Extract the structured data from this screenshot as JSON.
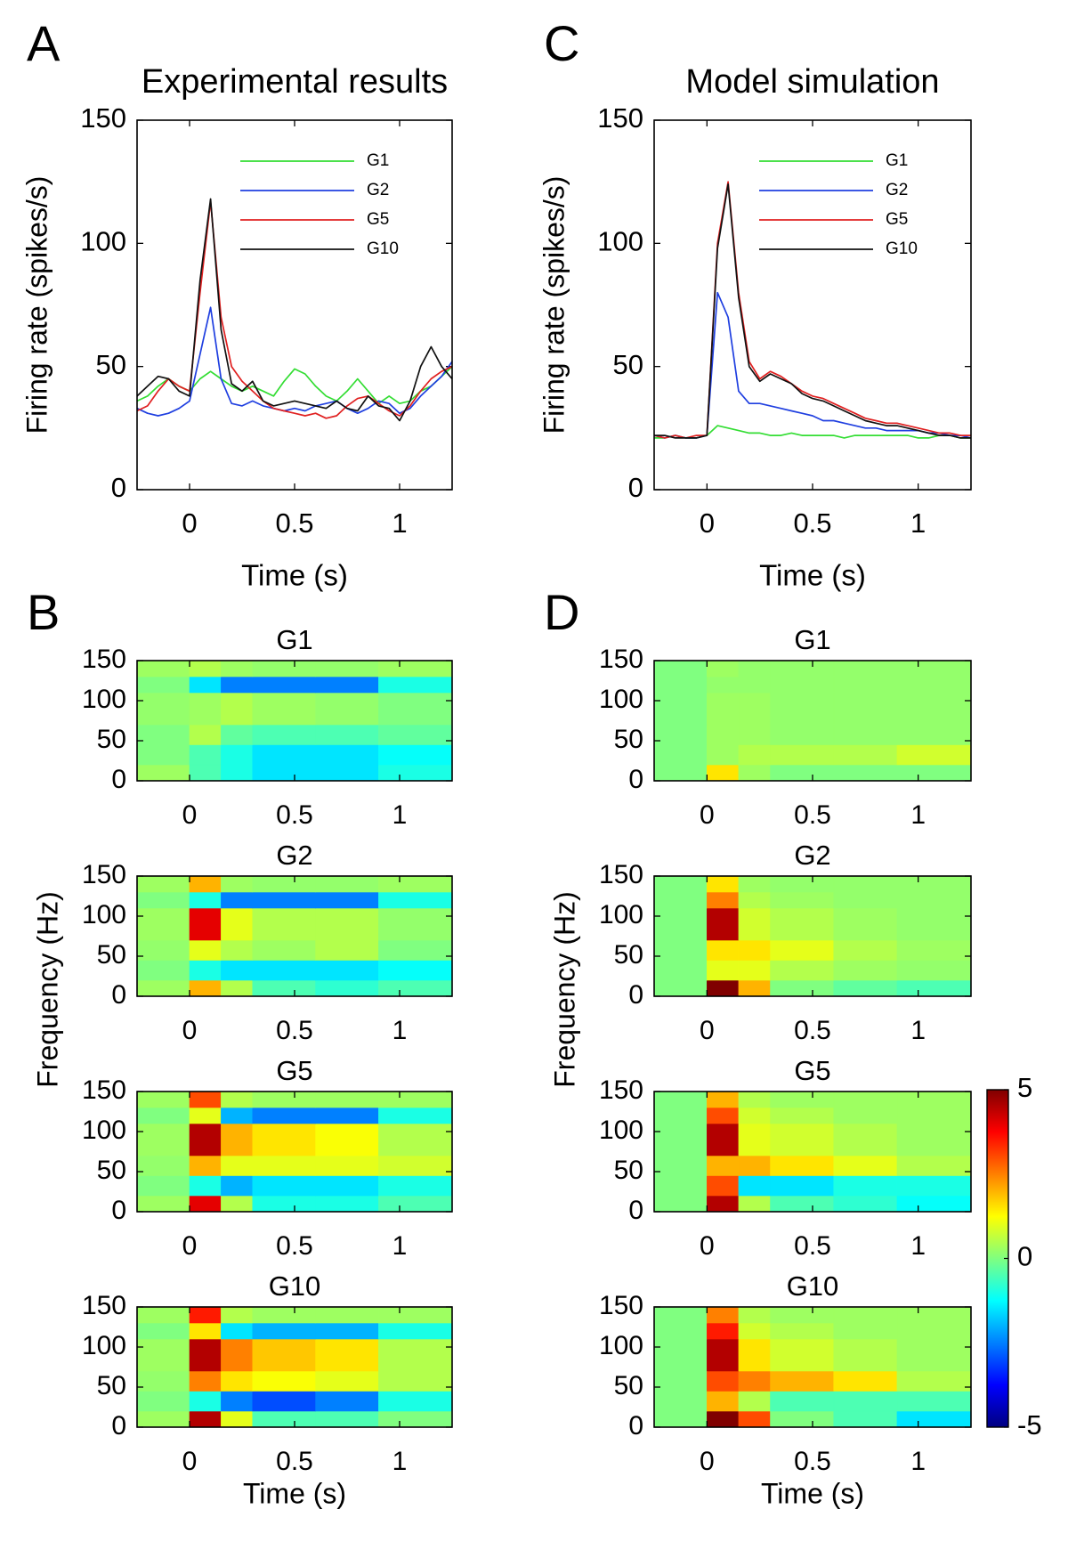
{
  "chart_data": [
    {
      "type": "line",
      "panel": "A",
      "title": "Experimental results",
      "xlabel": "Time (s)",
      "ylabel": "Firing rate (spikes/s)",
      "x": [
        -0.25,
        -0.2,
        -0.15,
        -0.1,
        -0.05,
        0,
        0.05,
        0.1,
        0.15,
        0.2,
        0.25,
        0.3,
        0.35,
        0.4,
        0.45,
        0.5,
        0.55,
        0.6,
        0.65,
        0.7,
        0.75,
        0.8,
        0.85,
        0.9,
        0.95,
        1,
        1.05,
        1.1,
        1.15,
        1.2,
        1.25
      ],
      "xlim": [
        -0.25,
        1.25
      ],
      "xticks": [
        0,
        0.5,
        1
      ],
      "ylim": [
        0,
        150
      ],
      "yticks": [
        0,
        50,
        100,
        150
      ],
      "legend": "upper right",
      "series": [
        {
          "name": "G1",
          "color": "#33dd33",
          "values": [
            36,
            38,
            42,
            45,
            42,
            40,
            45,
            48,
            45,
            42,
            40,
            42,
            40,
            38,
            44,
            49,
            47,
            42,
            38,
            36,
            40,
            45,
            40,
            35,
            38,
            35,
            36,
            40,
            42,
            46,
            50
          ]
        },
        {
          "name": "G2",
          "color": "#1f3fe0",
          "values": [
            33,
            31,
            30,
            31,
            33,
            36,
            55,
            74,
            45,
            35,
            34,
            36,
            34,
            33,
            32,
            33,
            32,
            34,
            35,
            36,
            33,
            31,
            33,
            36,
            35,
            31,
            33,
            38,
            42,
            46,
            52
          ]
        },
        {
          "name": "G5",
          "color": "#e02020",
          "values": [
            32,
            34,
            40,
            45,
            42,
            40,
            80,
            117,
            70,
            50,
            44,
            40,
            36,
            33,
            32,
            31,
            30,
            31,
            29,
            30,
            34,
            37,
            38,
            35,
            32,
            30,
            34,
            40,
            45,
            48,
            50
          ]
        },
        {
          "name": "G10",
          "color": "#111111",
          "values": [
            38,
            42,
            46,
            45,
            40,
            38,
            85,
            118,
            65,
            43,
            40,
            44,
            36,
            34,
            35,
            36,
            35,
            34,
            33,
            36,
            33,
            32,
            38,
            34,
            33,
            28,
            36,
            50,
            58,
            50,
            45
          ]
        }
      ]
    },
    {
      "type": "heatmap",
      "panel": "B",
      "xlabel": "Time (s)",
      "ylabel": "Frequency (Hz)",
      "xlim": [
        -0.25,
        1.25
      ],
      "xticks": [
        0,
        0.5,
        1
      ],
      "ylim": [
        0,
        150
      ],
      "yticks": [
        0,
        50,
        100,
        150
      ],
      "clim": [
        -5,
        5
      ],
      "x_edges": [
        -0.25,
        0,
        0.15,
        0.3,
        0.6,
        0.9,
        1.25
      ],
      "y_edges": [
        0,
        20,
        45,
        70,
        110,
        130,
        150
      ],
      "maps": [
        {
          "title": "G1",
          "values": [
            [
              0.3,
              -0.5,
              -1,
              -1.5,
              -1.5,
              -1
            ],
            [
              0,
              -0.5,
              -1,
              -1.5,
              -1.5,
              -1.2
            ],
            [
              0,
              0.5,
              -0.3,
              -0.5,
              -0.5,
              -0.3
            ],
            [
              0.2,
              0.3,
              0.5,
              0.3,
              0.2,
              0
            ],
            [
              0,
              -1.5,
              -2.5,
              -2.5,
              -2.5,
              -1
            ],
            [
              0.3,
              0.5,
              0.3,
              0.2,
              0.2,
              0.3
            ]
          ]
        },
        {
          "title": "G2",
          "values": [
            [
              0.3,
              2,
              0.5,
              -0.5,
              -0.8,
              -0.5
            ],
            [
              0,
              -1,
              -1.5,
              -1.5,
              -1.5,
              -1.2
            ],
            [
              0.2,
              1,
              0.5,
              0.3,
              0.5,
              0
            ],
            [
              0.3,
              4,
              1,
              0.5,
              0.5,
              0.2
            ],
            [
              0,
              -1,
              -2.5,
              -2.5,
              -2.5,
              -1
            ],
            [
              0.3,
              2,
              0.3,
              0.2,
              0.2,
              0.3
            ]
          ]
        },
        {
          "title": "G5",
          "values": [
            [
              0.3,
              4,
              0.5,
              -1,
              -1,
              -0.5
            ],
            [
              0,
              -1,
              -2,
              -1.5,
              -1.5,
              -1
            ],
            [
              0.2,
              2,
              1,
              1,
              1,
              0.8
            ],
            [
              0.3,
              4.5,
              2,
              1.5,
              1.2,
              0.5
            ],
            [
              0,
              1,
              -2,
              -2.5,
              -2.5,
              -1
            ],
            [
              0.3,
              3,
              0.5,
              0.3,
              0.3,
              0.3
            ]
          ]
        },
        {
          "title": "G10",
          "values": [
            [
              0.3,
              4.5,
              1,
              -0.5,
              -0.5,
              0
            ],
            [
              0,
              -1,
              -2.5,
              -3,
              -2.5,
              -1
            ],
            [
              0.2,
              2.5,
              1.5,
              1.2,
              1,
              0.5
            ],
            [
              0.3,
              4.5,
              2.5,
              1.8,
              1.5,
              0.5
            ],
            [
              0,
              1.5,
              -1.5,
              -2,
              -2,
              -1
            ],
            [
              0.3,
              3.5,
              0.5,
              0.3,
              0.3,
              0.3
            ]
          ]
        }
      ]
    },
    {
      "type": "line",
      "panel": "C",
      "title": "Model simulation",
      "xlabel": "Time (s)",
      "ylabel": "Firing rate (spikes/s)",
      "x": [
        -0.25,
        -0.2,
        -0.15,
        -0.1,
        -0.05,
        0,
        0.05,
        0.1,
        0.15,
        0.2,
        0.25,
        0.3,
        0.35,
        0.4,
        0.45,
        0.5,
        0.55,
        0.6,
        0.65,
        0.7,
        0.75,
        0.8,
        0.85,
        0.9,
        0.95,
        1,
        1.05,
        1.1,
        1.15,
        1.2,
        1.25
      ],
      "xlim": [
        -0.25,
        1.25
      ],
      "xticks": [
        0,
        0.5,
        1
      ],
      "ylim": [
        0,
        150
      ],
      "yticks": [
        0,
        50,
        100,
        150
      ],
      "legend": "upper right",
      "series": [
        {
          "name": "G1",
          "color": "#33dd33",
          "values": [
            21,
            21,
            22,
            21,
            21,
            22,
            26,
            25,
            24,
            23,
            23,
            22,
            22,
            23,
            22,
            22,
            22,
            22,
            21,
            22,
            22,
            22,
            22,
            22,
            22,
            21,
            21,
            22,
            22,
            21,
            21
          ]
        },
        {
          "name": "G2",
          "color": "#1f3fe0",
          "values": [
            22,
            21,
            22,
            21,
            21,
            22,
            80,
            70,
            40,
            35,
            35,
            34,
            33,
            32,
            31,
            30,
            28,
            28,
            27,
            26,
            25,
            25,
            24,
            24,
            24,
            24,
            23,
            23,
            22,
            22,
            21
          ]
        },
        {
          "name": "G5",
          "color": "#e02020",
          "values": [
            22,
            21,
            22,
            21,
            22,
            22,
            100,
            125,
            80,
            52,
            45,
            48,
            46,
            43,
            40,
            38,
            37,
            35,
            33,
            31,
            29,
            28,
            27,
            27,
            26,
            25,
            24,
            23,
            23,
            22,
            22
          ]
        },
        {
          "name": "G10",
          "color": "#111111",
          "values": [
            22,
            22,
            21,
            21,
            21,
            22,
            98,
            124,
            78,
            50,
            44,
            47,
            45,
            43,
            39,
            37,
            36,
            34,
            32,
            30,
            28,
            27,
            26,
            26,
            25,
            24,
            23,
            22,
            22,
            21,
            21
          ]
        }
      ]
    },
    {
      "type": "heatmap",
      "panel": "D",
      "xlabel": "Time (s)",
      "ylabel": "Frequency (Hz)",
      "xlim": [
        -0.25,
        1.25
      ],
      "xticks": [
        0,
        0.5,
        1
      ],
      "ylim": [
        0,
        150
      ],
      "yticks": [
        0,
        50,
        100,
        150
      ],
      "clim": [
        -5,
        5
      ],
      "x_edges": [
        -0.25,
        0,
        0.15,
        0.3,
        0.6,
        0.9,
        1.25
      ],
      "y_edges": [
        0,
        20,
        45,
        70,
        110,
        130,
        150
      ],
      "maps": [
        {
          "title": "G1",
          "values": [
            [
              0,
              1.5,
              0.3,
              0,
              0,
              0
            ],
            [
              0,
              0.3,
              0.5,
              0.5,
              0.5,
              0.8
            ],
            [
              0,
              0.3,
              0.3,
              0.2,
              0.2,
              0.2
            ],
            [
              0,
              0.3,
              0.3,
              0.2,
              0.2,
              0.2
            ],
            [
              0,
              0.2,
              0.2,
              0.2,
              0.2,
              0.2
            ],
            [
              0,
              0.3,
              0.2,
              0.2,
              0.2,
              0.2
            ]
          ]
        },
        {
          "title": "G2",
          "values": [
            [
              0,
              5,
              2,
              0,
              -0.3,
              -0.5
            ],
            [
              0,
              1,
              1,
              0.5,
              0.3,
              0.2
            ],
            [
              0,
              1.5,
              1.5,
              1,
              0.5,
              0.3
            ],
            [
              0,
              4.5,
              0.8,
              0.5,
              0.3,
              0.2
            ],
            [
              0,
              2.5,
              0.5,
              0.3,
              0.2,
              0.2
            ],
            [
              0,
              1.5,
              0.3,
              0.2,
              0.2,
              0.2
            ]
          ]
        },
        {
          "title": "G5",
          "values": [
            [
              0,
              4.5,
              0.5,
              -0.5,
              -0.8,
              -1.2
            ],
            [
              0,
              3,
              -1.5,
              -1.5,
              -1,
              -1
            ],
            [
              0,
              2,
              2,
              1.5,
              1,
              0.5
            ],
            [
              0,
              4.5,
              1,
              0.8,
              0.5,
              0.3
            ],
            [
              0,
              3,
              0.8,
              0.5,
              0.3,
              0.3
            ],
            [
              0,
              2,
              0.5,
              0.3,
              0.3,
              0.3
            ]
          ]
        },
        {
          "title": "G10",
          "values": [
            [
              0,
              5,
              3,
              0,
              -0.5,
              -1.5
            ],
            [
              0,
              2,
              0.5,
              -0.5,
              -0.5,
              -0.5
            ],
            [
              0,
              3,
              2.5,
              2,
              1.5,
              0.5
            ],
            [
              0,
              4.5,
              1.5,
              0.8,
              0.5,
              0.3
            ],
            [
              0,
              3.5,
              0.8,
              0.5,
              0.3,
              0.3
            ],
            [
              0,
              2.5,
              0.5,
              0.3,
              0.3,
              0.3
            ]
          ]
        }
      ]
    },
    {
      "type": "colorbar",
      "lim": [
        -5,
        5
      ],
      "ticks": [
        5,
        0,
        -5
      ]
    }
  ]
}
